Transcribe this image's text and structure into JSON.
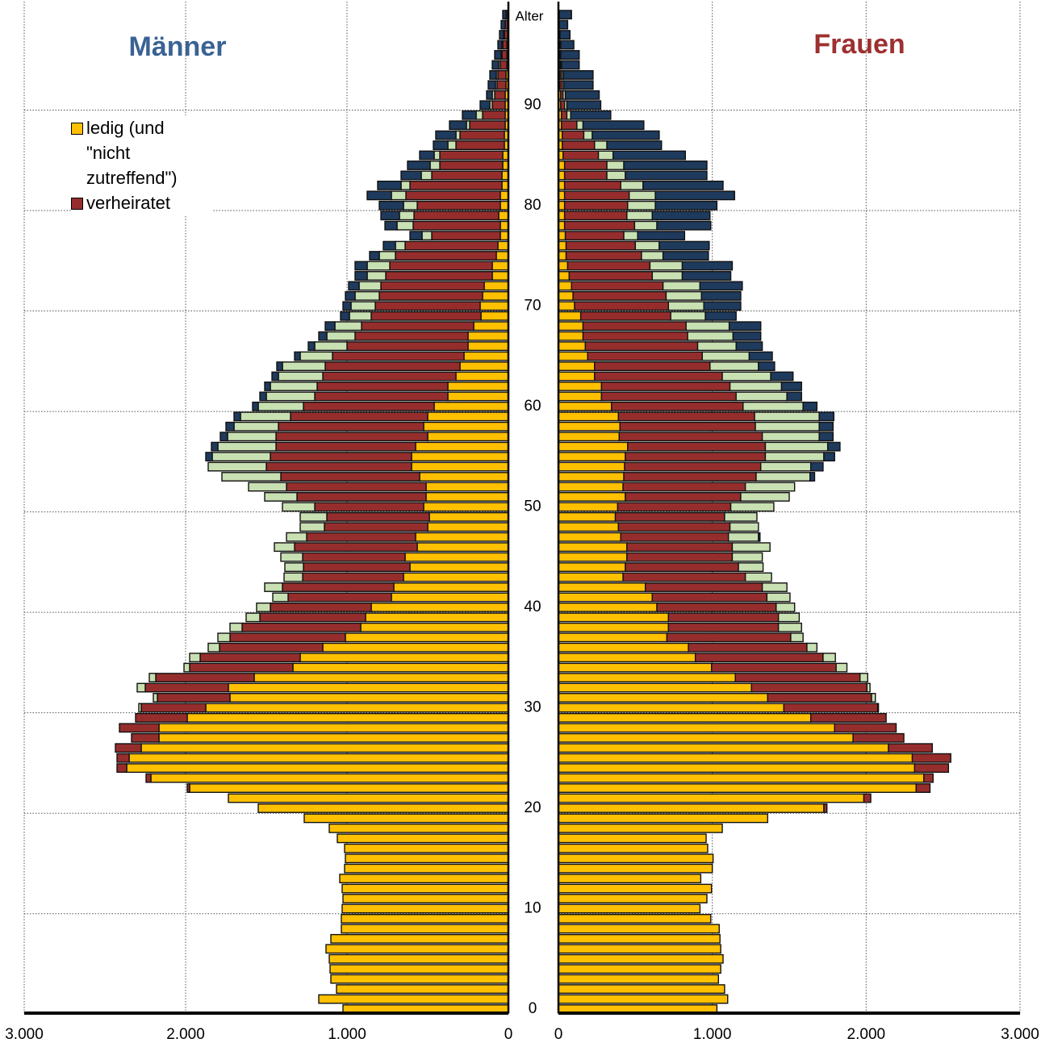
{
  "chart_data": {
    "type": "pyramid",
    "ylabel": "Alter",
    "y": [
      0,
      1,
      2,
      3,
      4,
      5,
      6,
      7,
      8,
      9,
      10,
      11,
      12,
      13,
      14,
      15,
      16,
      17,
      18,
      19,
      20,
      21,
      22,
      23,
      24,
      25,
      26,
      27,
      28,
      29,
      30,
      31,
      32,
      33,
      34,
      35,
      36,
      37,
      38,
      39,
      40,
      41,
      42,
      43,
      44,
      45,
      46,
      47,
      48,
      49,
      50,
      51,
      52,
      53,
      54,
      55,
      56,
      57,
      58,
      59,
      60,
      61,
      62,
      63,
      64,
      65,
      66,
      67,
      68,
      69,
      70,
      71,
      72,
      73,
      74,
      75,
      76,
      77,
      78,
      79,
      80,
      81,
      82,
      83,
      84,
      85,
      86,
      87,
      88,
      89,
      90,
      91,
      92,
      93,
      94,
      95,
      96,
      97,
      98,
      99
    ],
    "ylim": [
      -0.4,
      100.3
    ],
    "yticks": [
      0,
      10,
      20,
      30,
      40,
      50,
      60,
      70,
      80,
      90
    ],
    "grid": true,
    "men": {
      "title": "Männer",
      "xlim": [
        0,
        3000
      ],
      "xticks": [
        {
          "value": 3000,
          "label": "3.000"
        },
        {
          "value": 2000,
          "label": "2.000"
        },
        {
          "value": 1000,
          "label": "1.000"
        },
        0
      ],
      "series": [
        {
          "name": "ledig (und \"nicht zutreffend\")",
          "color": "#ffc000",
          "values": [
            1025,
            1175,
            1065,
            1100,
            1105,
            1110,
            1130,
            1100,
            1035,
            1035,
            1030,
            1025,
            1030,
            1045,
            1015,
            1010,
            1015,
            1060,
            1110,
            1265,
            1550,
            1735,
            1975,
            2215,
            2365,
            2350,
            2275,
            2165,
            2165,
            1990,
            1875,
            1725,
            1735,
            1575,
            1335,
            1290,
            1150,
            1010,
            915,
            885,
            850,
            725,
            710,
            650,
            610,
            640,
            565,
            575,
            500,
            490,
            525,
            510,
            510,
            550,
            600,
            600,
            575,
            500,
            525,
            500,
            460,
            375,
            375,
            325,
            300,
            275,
            250,
            250,
            215,
            170,
            175,
            160,
            150,
            100,
            100,
            75,
            65,
            50,
            50,
            60,
            50,
            50,
            40,
            40,
            35,
            35,
            25,
            25,
            20,
            20,
            20,
            20,
            15,
            15,
            10,
            10,
            10,
            5,
            5,
            5
          ]
        },
        {
          "name": "verheiratet",
          "color": "#962d2d",
          "values": [
            0,
            0,
            0,
            0,
            0,
            0,
            0,
            0,
            0,
            0,
            0,
            0,
            0,
            0,
            0,
            0,
            0,
            0,
            0,
            0,
            0,
            0,
            15,
            30,
            60,
            75,
            160,
            170,
            245,
            320,
            400,
            450,
            515,
            610,
            640,
            620,
            640,
            715,
            735,
            655,
            625,
            640,
            690,
            625,
            660,
            635,
            760,
            675,
            640,
            635,
            675,
            800,
            865,
            860,
            900,
            875,
            865,
            940,
            900,
            850,
            810,
            825,
            810,
            825,
            835,
            815,
            750,
            700,
            695,
            680,
            650,
            640,
            640,
            660,
            635,
            625,
            575,
            425,
            540,
            525,
            515,
            585,
            570,
            435,
            390,
            390,
            300,
            275,
            220,
            140,
            80,
            65,
            55,
            50,
            40,
            30,
            25,
            20,
            15,
            10
          ]
        },
        {
          "color": "#c8e0b2",
          "values": [
            0,
            0,
            0,
            0,
            0,
            0,
            0,
            0,
            0,
            0,
            0,
            0,
            0,
            0,
            0,
            0,
            0,
            0,
            0,
            0,
            0,
            0,
            0,
            0,
            0,
            0,
            0,
            0,
            0,
            0,
            15,
            25,
            50,
            40,
            35,
            65,
            70,
            75,
            75,
            85,
            85,
            95,
            110,
            115,
            115,
            135,
            125,
            125,
            150,
            165,
            200,
            200,
            235,
            365,
            360,
            360,
            360,
            300,
            275,
            310,
            280,
            300,
            290,
            275,
            265,
            200,
            200,
            175,
            165,
            135,
            150,
            150,
            135,
            115,
            140,
            100,
            60,
            60,
            100,
            90,
            85,
            90,
            55,
            65,
            60,
            35,
            50,
            25,
            20,
            40,
            15,
            15,
            10,
            10,
            10,
            5,
            5,
            5,
            0,
            0
          ]
        },
        {
          "color": "#1e3a5c",
          "values": [
            0,
            0,
            0,
            0,
            0,
            0,
            0,
            0,
            0,
            0,
            0,
            0,
            0,
            0,
            0,
            0,
            0,
            0,
            0,
            0,
            0,
            0,
            0,
            0,
            0,
            0,
            0,
            0,
            0,
            0,
            0,
            0,
            0,
            0,
            0,
            0,
            0,
            0,
            0,
            0,
            0,
            0,
            0,
            0,
            0,
            0,
            0,
            0,
            0,
            0,
            0,
            0,
            0,
            0,
            0,
            40,
            40,
            45,
            50,
            40,
            35,
            40,
            35,
            40,
            35,
            35,
            40,
            50,
            60,
            55,
            50,
            60,
            65,
            75,
            75,
            60,
            75,
            75,
            75,
            115,
            150,
            150,
            145,
            125,
            140,
            90,
            90,
            125,
            105,
            85,
            60,
            35,
            45,
            40,
            40,
            40,
            25,
            25,
            25,
            20
          ]
        }
      ]
    },
    "women": {
      "title": "Frauen",
      "xlim": [
        0,
        3000
      ],
      "xticks": [
        0,
        {
          "value": 1000,
          "label": "1.000"
        },
        {
          "value": 2000,
          "label": "2.000"
        },
        {
          "value": 3000,
          "label": "3.000"
        }
      ],
      "series": [
        {
          "color": "#ffc000",
          "values": [
            1030,
            1100,
            1080,
            1040,
            1055,
            1070,
            1055,
            1050,
            1045,
            990,
            920,
            965,
            995,
            925,
            1000,
            1005,
            970,
            960,
            1065,
            1360,
            1725,
            1985,
            2325,
            2375,
            2315,
            2300,
            2145,
            1915,
            1795,
            1640,
            1465,
            1360,
            1255,
            1150,
            995,
            890,
            845,
            705,
            715,
            715,
            640,
            610,
            565,
            420,
            435,
            445,
            445,
            405,
            390,
            370,
            385,
            435,
            420,
            425,
            430,
            435,
            450,
            395,
            400,
            390,
            345,
            280,
            280,
            235,
            235,
            190,
            175,
            160,
            160,
            145,
            105,
            95,
            85,
            70,
            60,
            50,
            50,
            45,
            40,
            40,
            40,
            40,
            40,
            40,
            40,
            30,
            25,
            25,
            20,
            20,
            15,
            15,
            10,
            10,
            10,
            5,
            5,
            5,
            5,
            5
          ]
        },
        {
          "color": "#962d2d",
          "values": [
            0,
            0,
            0,
            0,
            0,
            0,
            0,
            0,
            0,
            0,
            0,
            0,
            0,
            0,
            0,
            0,
            0,
            0,
            0,
            0,
            20,
            45,
            90,
            60,
            220,
            250,
            285,
            330,
            400,
            490,
            610,
            675,
            750,
            810,
            810,
            830,
            770,
            805,
            715,
            715,
            775,
            745,
            760,
            795,
            735,
            685,
            685,
            700,
            725,
            710,
            735,
            750,
            795,
            860,
            885,
            910,
            895,
            930,
            880,
            885,
            855,
            875,
            835,
            830,
            750,
            745,
            730,
            680,
            670,
            585,
            610,
            605,
            595,
            540,
            535,
            490,
            450,
            380,
            455,
            405,
            410,
            420,
            365,
            275,
            275,
            230,
            210,
            140,
            100,
            35,
            25,
            15,
            15,
            10,
            5,
            5,
            5,
            5,
            0,
            0
          ]
        },
        {
          "color": "#c8e0b2",
          "values": [
            0,
            0,
            0,
            0,
            0,
            0,
            0,
            0,
            0,
            0,
            0,
            0,
            0,
            0,
            0,
            0,
            0,
            0,
            0,
            0,
            0,
            0,
            0,
            0,
            0,
            0,
            0,
            0,
            0,
            0,
            5,
            25,
            20,
            50,
            70,
            80,
            65,
            80,
            150,
            135,
            120,
            150,
            160,
            170,
            160,
            195,
            245,
            195,
            185,
            210,
            280,
            315,
            320,
            350,
            325,
            380,
            405,
            370,
            415,
            420,
            390,
            330,
            335,
            315,
            315,
            305,
            250,
            295,
            280,
            225,
            230,
            230,
            240,
            195,
            210,
            140,
            155,
            90,
            145,
            165,
            180,
            170,
            145,
            120,
            110,
            95,
            80,
            55,
            40,
            25,
            15,
            15,
            10,
            10,
            5,
            5,
            5,
            0,
            0,
            0
          ]
        },
        {
          "color": "#1e3a5c",
          "values": [
            0,
            0,
            0,
            0,
            0,
            0,
            0,
            0,
            0,
            0,
            0,
            0,
            0,
            0,
            0,
            0,
            0,
            0,
            0,
            0,
            0,
            0,
            0,
            0,
            0,
            0,
            0,
            0,
            0,
            0,
            0,
            0,
            0,
            0,
            0,
            0,
            0,
            0,
            0,
            0,
            0,
            0,
            0,
            0,
            0,
            0,
            0,
            10,
            0,
            0,
            0,
            0,
            0,
            30,
            80,
            70,
            80,
            90,
            90,
            95,
            90,
            95,
            130,
            145,
            105,
            150,
            170,
            180,
            205,
            200,
            240,
            255,
            275,
            315,
            325,
            295,
            325,
            305,
            350,
            375,
            400,
            515,
            520,
            530,
            540,
            470,
            355,
            435,
            395,
            260,
            220,
            220,
            190,
            195,
            115,
            120,
            85,
            65,
            55,
            80
          ]
        }
      ]
    }
  }
}
